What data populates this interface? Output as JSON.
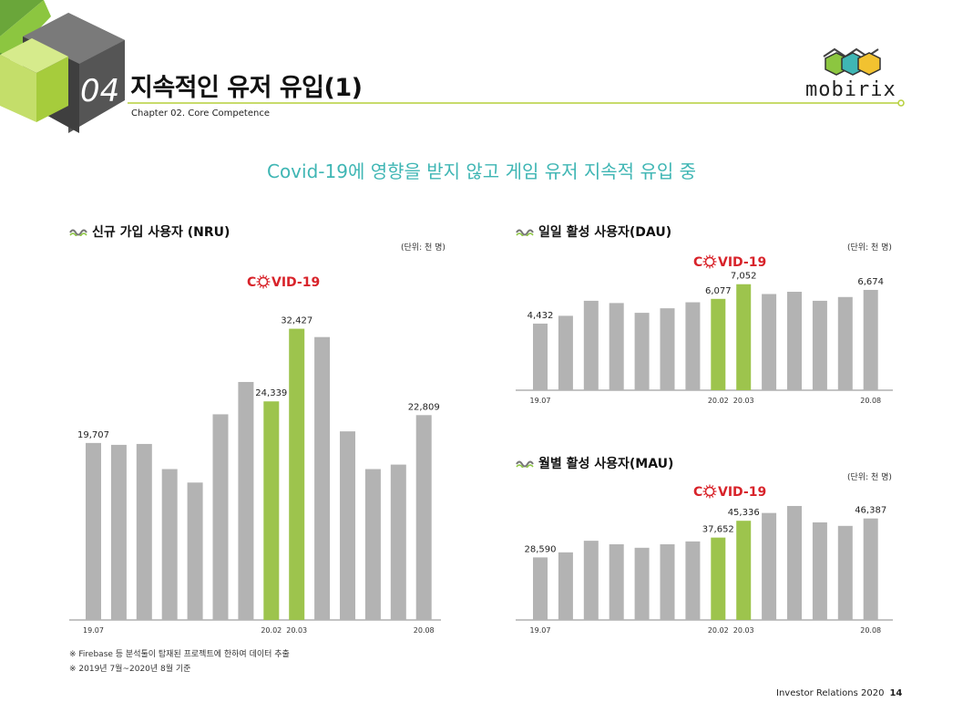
{
  "header": {
    "chapter_number": "04",
    "title": "지속적인 유저 유입(1)",
    "subtitle": "Chapter 02. Core Competence",
    "logo_text": "mobirix"
  },
  "headline": "Covid-19에 영향을 받지 않고 게임 유저 지속적 유입 중",
  "covid_label": "COVID-19",
  "colors": {
    "gray_bar": "#b3b3b3",
    "highlight_bar": "#9dc44d",
    "accent_line": "#b6cf3a",
    "covid_red": "#d8232a",
    "headline": "#3fb6b4"
  },
  "notes": [
    "※ Firebase 등 분석툴이 탑재된 프로젝트에 한하여 데이터 추출",
    "※ 2019년 7월~2020년 8월 기준"
  ],
  "footer": {
    "text": "Investor Relations 2020",
    "page": "14"
  },
  "chart_data": [
    {
      "id": "nru",
      "type": "bar",
      "title": "신규 가입 사용자 (NRU)",
      "unit": "(단위: 천 명)",
      "categories": [
        "19.07",
        "19.08",
        "19.09",
        "19.10",
        "19.11",
        "19.12",
        "20.01",
        "20.02",
        "20.03",
        "20.04",
        "20.05",
        "20.06",
        "20.07",
        "20.08"
      ],
      "tick_labels": [
        "19.07",
        "",
        "",
        "",
        "",
        "",
        "",
        "20.02",
        "20.03",
        "",
        "",
        "",
        "",
        "20.08"
      ],
      "values": [
        19707,
        19500,
        19600,
        16800,
        15300,
        22900,
        26500,
        24339,
        32427,
        31500,
        21000,
        16800,
        17300,
        22809
      ],
      "value_labels": [
        "19,707",
        "",
        "",
        "",
        "",
        "",
        "",
        "24,339",
        "32,427",
        "",
        "",
        "",
        "",
        "22,809"
      ],
      "highlight": [
        false,
        false,
        false,
        false,
        false,
        false,
        false,
        true,
        true,
        false,
        false,
        false,
        false,
        false
      ],
      "ylim": [
        0,
        33500
      ]
    },
    {
      "id": "dau",
      "type": "bar",
      "title": "일일 활성 사용자(DAU)",
      "unit": "(단위: 천 명)",
      "categories": [
        "19.07",
        "19.08",
        "19.09",
        "19.10",
        "19.11",
        "19.12",
        "20.01",
        "20.02",
        "20.03",
        "20.04",
        "20.05",
        "20.06",
        "20.07",
        "20.08"
      ],
      "tick_labels": [
        "19.07",
        "",
        "",
        "",
        "",
        "",
        "",
        "20.02",
        "20.03",
        "",
        "",
        "",
        "",
        "20.08"
      ],
      "values": [
        4432,
        4950,
        5950,
        5800,
        5150,
        5450,
        5850,
        6077,
        7052,
        6400,
        6550,
        5950,
        6200,
        6674
      ],
      "value_labels": [
        "4,432",
        "",
        "",
        "",
        "",
        "",
        "",
        "6,077",
        "7,052",
        "",
        "",
        "",
        "",
        "6,674"
      ],
      "highlight": [
        false,
        false,
        false,
        false,
        false,
        false,
        false,
        true,
        true,
        false,
        false,
        false,
        false,
        false
      ],
      "ylim": [
        0,
        7400
      ]
    },
    {
      "id": "mau",
      "type": "bar",
      "title": "월별 활성 사용자(MAU)",
      "unit": "(단위: 천 명)",
      "categories": [
        "19.07",
        "19.08",
        "19.09",
        "19.10",
        "19.11",
        "19.12",
        "20.01",
        "20.02",
        "20.03",
        "20.04",
        "20.05",
        "20.06",
        "20.07",
        "20.08"
      ],
      "tick_labels": [
        "19.07",
        "",
        "",
        "",
        "",
        "",
        "",
        "20.02",
        "20.03",
        "",
        "",
        "",
        "",
        "20.08"
      ],
      "values": [
        28590,
        30900,
        36200,
        34600,
        33000,
        34600,
        35900,
        37652,
        45336,
        48900,
        52100,
        44600,
        43000,
        46387
      ],
      "value_labels": [
        "28,590",
        "",
        "",
        "",
        "",
        "",
        "",
        "37,652",
        "45,336",
        "",
        "",
        "",
        "",
        "46,387"
      ],
      "highlight": [
        false,
        false,
        false,
        false,
        false,
        false,
        false,
        true,
        true,
        false,
        false,
        false,
        false,
        false
      ],
      "ylim": [
        0,
        55000
      ]
    }
  ]
}
